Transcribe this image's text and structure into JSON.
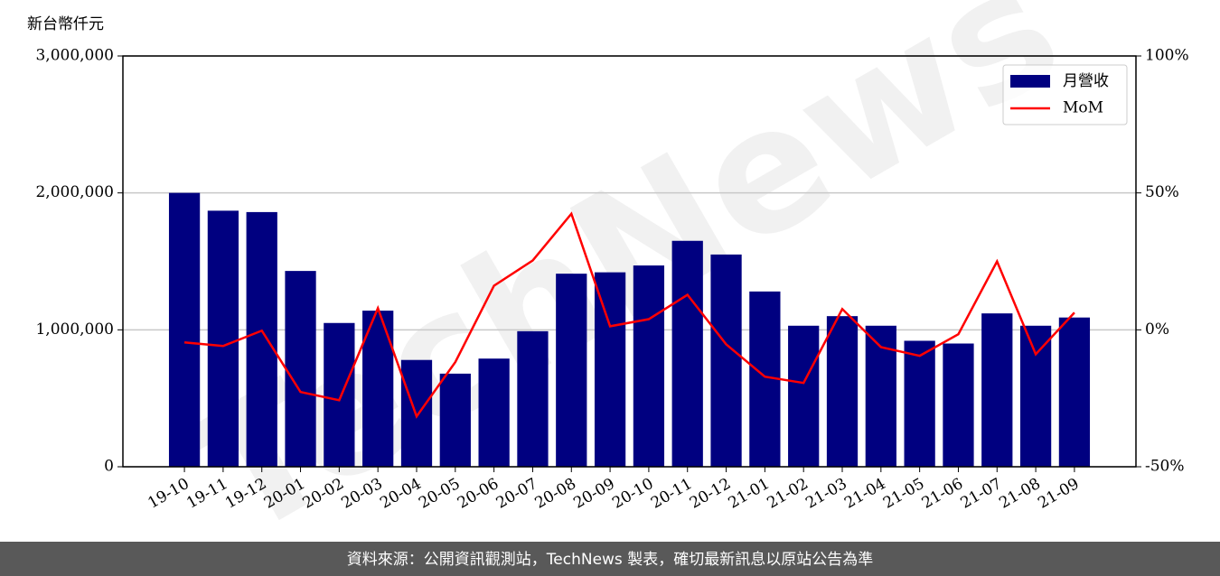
{
  "chart_data": {
    "type": "bar_line",
    "y_label": "新台幣仟元",
    "watermark": "TechNews",
    "categories": [
      "19-10",
      "19-11",
      "19-12",
      "20-01",
      "20-02",
      "20-03",
      "20-04",
      "20-05",
      "20-06",
      "20-07",
      "20-08",
      "20-09",
      "20-10",
      "20-11",
      "20-12",
      "21-01",
      "21-02",
      "21-03",
      "21-04",
      "21-05",
      "21-06",
      "21-07",
      "21-08",
      "21-09"
    ],
    "series": [
      {
        "name": "月營收",
        "type": "bar",
        "color": "#000080",
        "values": [
          2000000,
          1870000,
          1860000,
          1430000,
          1050000,
          1140000,
          780000,
          680000,
          790000,
          990000,
          1410000,
          1420000,
          1470000,
          1650000,
          1550000,
          1280000,
          1030000,
          1100000,
          1030000,
          920000,
          900000,
          1120000,
          1030000,
          1090000
        ]
      },
      {
        "name": "MoM",
        "type": "line",
        "axis": "y2",
        "color": "#ff0000",
        "values": [
          -4.6,
          -5.9,
          -0.3,
          -22.7,
          -25.7,
          7.9,
          -31.6,
          -11.8,
          16.1,
          25.3,
          42.4,
          1.3,
          3.9,
          12.8,
          -5.3,
          -17.1,
          -19.4,
          7.6,
          -6.3,
          -9.5,
          -1.6,
          25.0,
          -8.9,
          6.3
        ]
      }
    ],
    "ylim": [
      0,
      3000000
    ],
    "yticks": [
      0,
      {
        "value": 1000000,
        "label": "1,000,000"
      },
      {
        "value": 2000000,
        "label": "2,000,000"
      },
      {
        "value": 3000000,
        "label": "3,000,000"
      }
    ],
    "y2lim": [
      -50,
      100
    ],
    "y2ticks": [
      {
        "value": -50,
        "label": "-50%"
      },
      {
        "value": 0,
        "label": "0%"
      },
      {
        "value": 50,
        "label": "50%"
      },
      {
        "value": 100,
        "label": "100%"
      }
    ],
    "grid": true,
    "legend": "upper-right",
    "footer": "資料來源：公開資訊觀測站，TechNews 製表，確切最新訊息以原站公告為準"
  }
}
